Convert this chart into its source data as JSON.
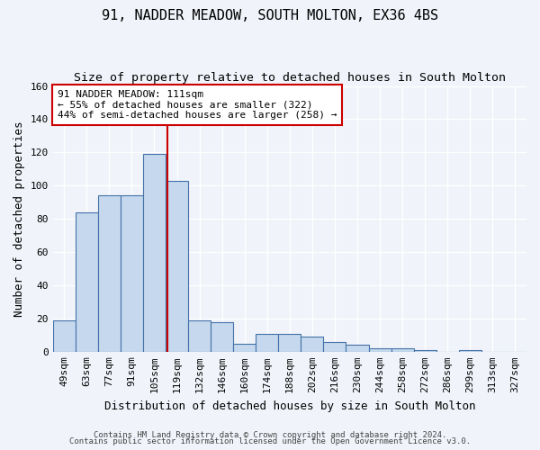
{
  "title": "91, NADDER MEADOW, SOUTH MOLTON, EX36 4BS",
  "subtitle": "Size of property relative to detached houses in South Molton",
  "xlabel": "Distribution of detached houses by size in South Molton",
  "ylabel": "Number of detached properties",
  "bar_labels": [
    "49sqm",
    "63sqm",
    "77sqm",
    "91sqm",
    "105sqm",
    "119sqm",
    "132sqm",
    "146sqm",
    "160sqm",
    "174sqm",
    "188sqm",
    "202sqm",
    "216sqm",
    "230sqm",
    "244sqm",
    "258sqm",
    "272sqm",
    "286sqm",
    "299sqm",
    "313sqm",
    "327sqm"
  ],
  "bar_values": [
    19,
    84,
    94,
    94,
    119,
    103,
    19,
    18,
    5,
    11,
    11,
    9,
    6,
    4,
    2,
    2,
    1,
    0,
    1,
    0,
    0
  ],
  "bar_color": "#c5d8ed",
  "bar_edge_color": "#4472a8",
  "vline_x": 4.58,
  "vline_color": "#cc0000",
  "annotation_text": "91 NADDER MEADOW: 111sqm\n← 55% of detached houses are smaller (322)\n44% of semi-detached houses are larger (258) →",
  "annotation_box_color": "#ffffff",
  "annotation_box_edge": "#cc0000",
  "ylim": [
    0,
    160
  ],
  "yticks": [
    0,
    20,
    40,
    60,
    80,
    100,
    120,
    140,
    160
  ],
  "footer1": "Contains HM Land Registry data © Crown copyright and database right 2024.",
  "footer2": "Contains public sector information licensed under the Open Government Licence v3.0.",
  "background_color": "#f0f4fa",
  "grid_color": "#ffffff",
  "title_fontsize": 11,
  "subtitle_fontsize": 9.5,
  "axis_label_fontsize": 9,
  "tick_fontsize": 8,
  "annotation_fontsize": 8,
  "footer_fontsize": 6.5
}
